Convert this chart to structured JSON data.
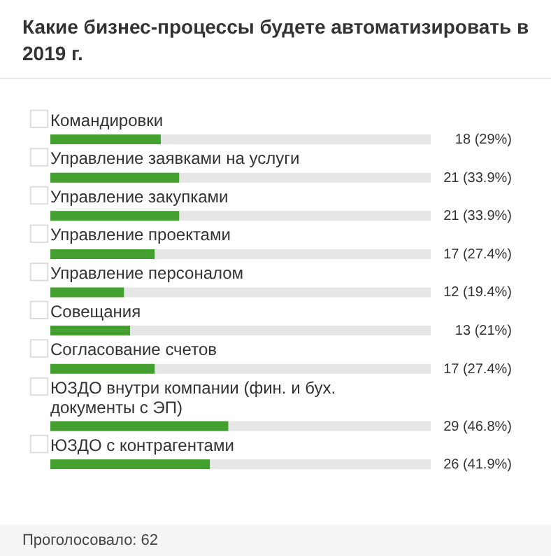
{
  "chart_data": {
    "type": "bar",
    "orientation": "horizontal",
    "title": "Какие бизнес-процессы будете автоматизировать в 2019 г.",
    "categories": [
      "Командировки",
      "Управление заявками на услуги",
      "Управление закупками",
      "Управление проектами",
      "Управление персоналом",
      "Совещания",
      "Согласование счетов",
      "ЮЗДО внутри компании (фин. и бух. документы с ЭП)",
      "ЮЗДО с контрагентами"
    ],
    "values": [
      18,
      21,
      21,
      17,
      12,
      13,
      17,
      29,
      26
    ],
    "value_labels": [
      "18 (29%)",
      "21 (33.9%)",
      "21 (33.9%)",
      "17 (27.4%)",
      "12 (19.4%)",
      "13 (21%)",
      "17 (27.4%)",
      "29 (46.8%)",
      "26 (41.9%)"
    ],
    "color": "#43a02f",
    "xlim": [
      0,
      62
    ],
    "annotations": [
      "Проголосовало: 62"
    ]
  }
}
